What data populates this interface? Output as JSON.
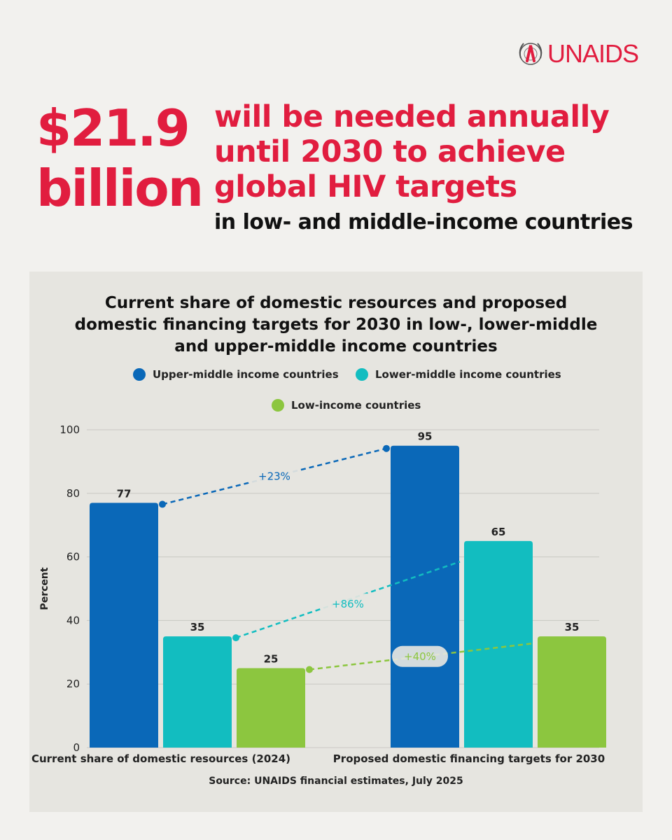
{
  "header": {
    "logo_text": "UNAIDS",
    "big_number_line1": "$21.9",
    "big_number_line2": "billion",
    "headline_line1": "will be needed annually",
    "headline_line2": "until 2030 to achieve",
    "headline_line3": "global HIV targets",
    "subhead": "in low- and middle-income countries"
  },
  "colors": {
    "brand_red": "#e11d3f",
    "upper_middle": "#0a68b8",
    "lower_middle": "#12bdc0",
    "low_income": "#8cc63f"
  },
  "chart_data": {
    "type": "bar",
    "title_line1": "Current share of domestic resources and proposed",
    "title_line2": "domestic financing targets for 2030 in low-, lower-middle",
    "title_line3": "and upper-middle income countries",
    "ylabel": "Percent",
    "ylim": [
      0,
      100
    ],
    "yticks": [
      "0",
      "20",
      "40",
      "60",
      "80",
      "100"
    ],
    "grid": true,
    "legend_position": "top",
    "categories": [
      "Current share of domestic resources (2024)",
      "Proposed domestic financing targets for 2030"
    ],
    "series": [
      {
        "name": "Upper-middle income countries",
        "color": "#0a68b8",
        "values": [
          77,
          95
        ]
      },
      {
        "name": "Lower-middle income countries",
        "color": "#12bdc0",
        "values": [
          35,
          65
        ]
      },
      {
        "name": "Low-income countries",
        "color": "#8cc63f",
        "values": [
          25,
          35
        ]
      }
    ],
    "annotations": [
      "+23%",
      "+86%",
      "+40%"
    ],
    "source": "Source: UNAIDS financial estimates, July 2025"
  }
}
